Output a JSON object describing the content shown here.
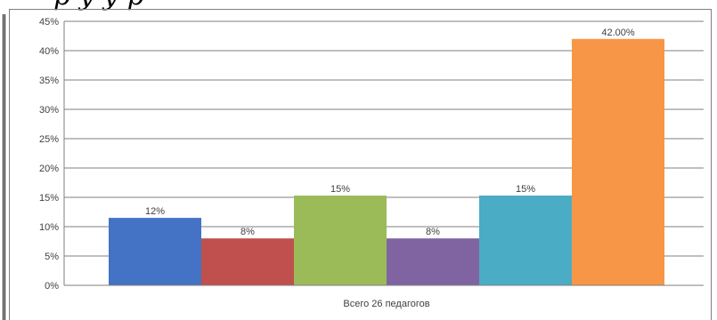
{
  "header_fragment": "р                                                    у  у р",
  "chart_data": {
    "type": "bar",
    "categories": [
      "Всего 26 педагогов"
    ],
    "series": [
      {
        "values": [
          11.5
        ],
        "label": "12%",
        "color": "#4472c4"
      },
      {
        "values": [
          8
        ],
        "label": "8%",
        "color": "#c0504d"
      },
      {
        "values": [
          15.3
        ],
        "label": "15%",
        "color": "#9bbb59"
      },
      {
        "values": [
          8
        ],
        "label": "8%",
        "color": "#8064a2"
      },
      {
        "values": [
          15.3
        ],
        "label": "15%",
        "color": "#4bacc6"
      },
      {
        "values": [
          42
        ],
        "label": "42.00%",
        "color": "#f79646"
      }
    ],
    "ylim": [
      0,
      45
    ],
    "yticks": [
      0,
      5,
      10,
      15,
      20,
      25,
      30,
      35,
      40,
      45
    ],
    "ytick_labels": [
      "0%",
      "5%",
      "10%",
      "15%",
      "20%",
      "25%",
      "30%",
      "35%",
      "40%",
      "45%"
    ],
    "grid": true,
    "legend": "none"
  }
}
